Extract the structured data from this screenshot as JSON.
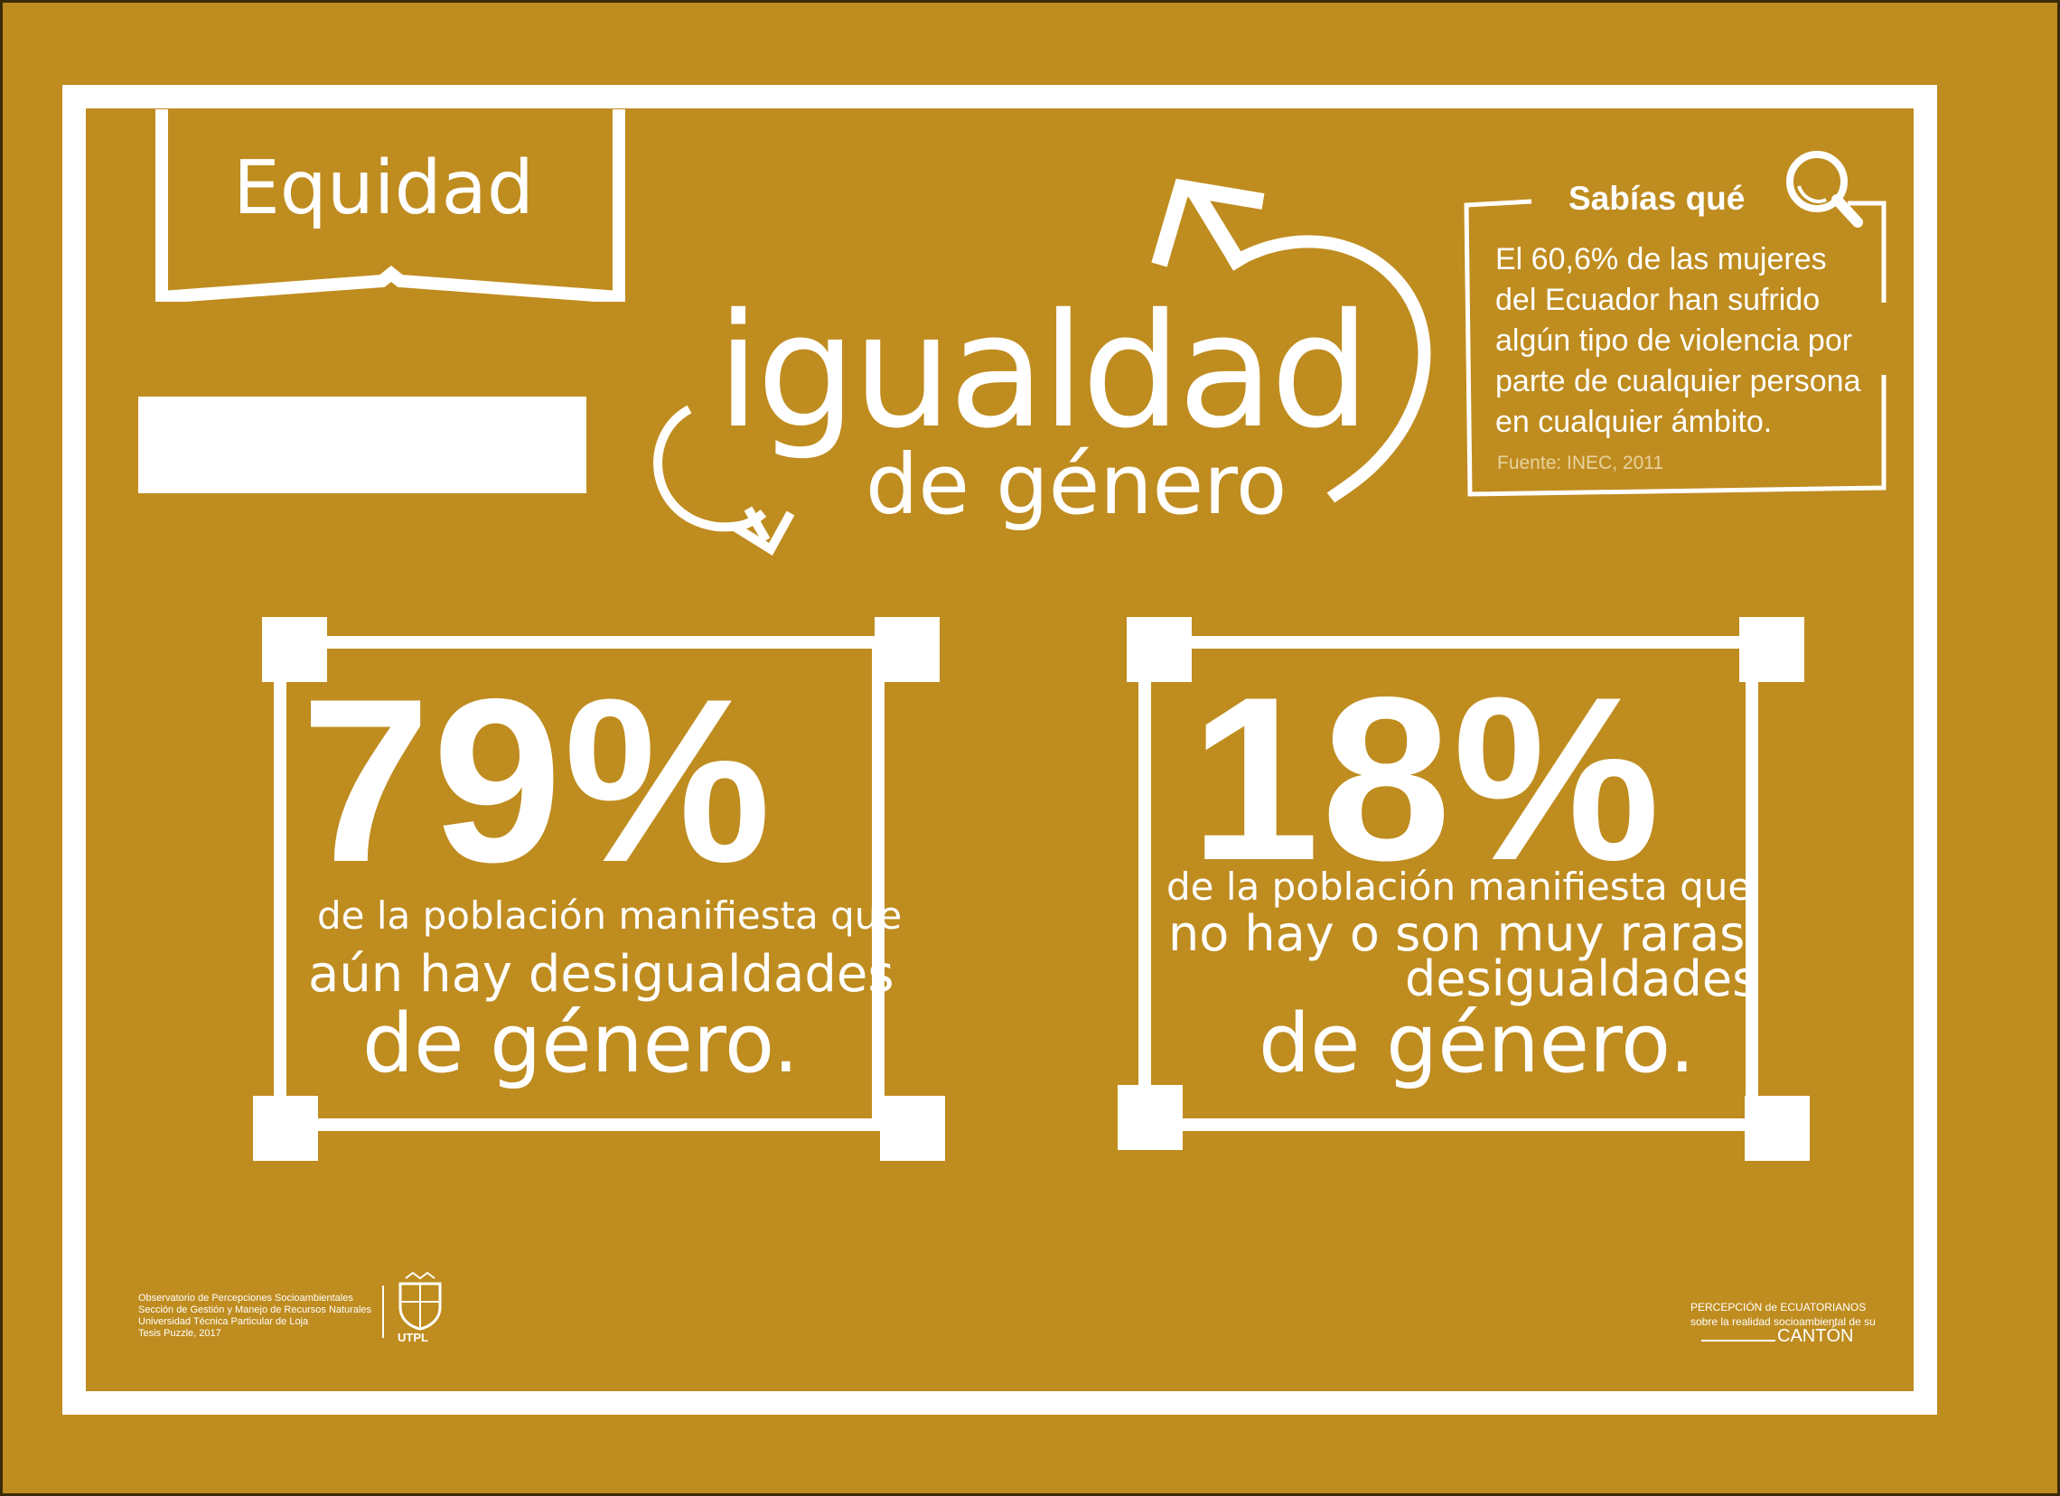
{
  "banner": {
    "label": "Equidad"
  },
  "title": {
    "main": "igualdad",
    "sub": "de género"
  },
  "fact": {
    "heading": "Sabías qué",
    "lines": [
      "El 60,6% de las mujeres",
      "del Ecuador han sufrido",
      "algún tipo de violencia por",
      "parte de cualquier persona",
      "en cualquier ámbito."
    ],
    "source": "Fuente: INEC, 2011"
  },
  "stats": [
    {
      "value": "79%",
      "line1": "de la población  manifiesta que",
      "line2": "aún hay desigualdades",
      "line3": "de género."
    },
    {
      "value": "18%",
      "line1": "de la población  manifiesta que",
      "line2": "no hay o son muy raras",
      "line3": "desigualdades",
      "line4": "de género."
    }
  ],
  "footer": {
    "left_lines": [
      "Observatorio de Percepciones Socioambientales",
      "Sección de Gestión y Manejo de Recursos Naturales",
      "Universidad Técnica Particular de Loja",
      "Tesis Puzzle, 2017"
    ],
    "logo_label": "UTPL",
    "right_line1": "PERCEPCIÓN de ECUATORIANOS",
    "right_line2": "sobre la realidad socioambiental de su",
    "right_word": "CANTÓN"
  },
  "colors": {
    "background": "#bf8c1f",
    "foreground": "#ffffff"
  }
}
